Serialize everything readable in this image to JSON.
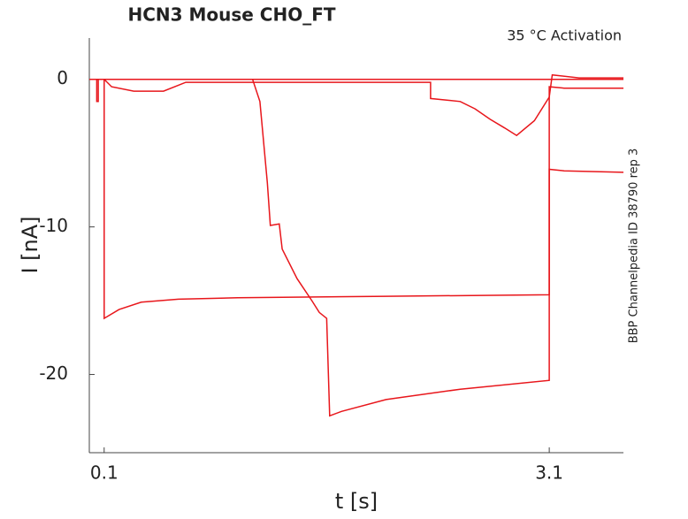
{
  "chart_data": {
    "type": "line",
    "title": "HCN3  Mouse  CHO_FT",
    "annotation": "35 °C  Activation",
    "side_note": "BBP Channelpedia ID 38790 rep 3",
    "xlabel": "t [s]",
    "ylabel": "I [nA]",
    "xlim": [
      0,
      3.6
    ],
    "ylim": [
      -25.3,
      2.8
    ],
    "xticks": [
      0.1,
      3.1
    ],
    "yticks": [
      0,
      -10,
      -20
    ],
    "grid": false,
    "series": [
      {
        "color": "#e8161b",
        "x": [
          0,
          0.1,
          0.1,
          0.2,
          0.35,
          0.6,
          1.0,
          2.0,
          3.1,
          3.1,
          3.2,
          3.6
        ],
        "values": [
          0,
          0,
          -16.2,
          -15.6,
          -15.1,
          -14.9,
          -14.8,
          -14.7,
          -14.6,
          -0.5,
          -0.6,
          -0.6
        ]
      },
      {
        "color": "#e8161b",
        "x": [
          0,
          1.1,
          1.15,
          1.2,
          1.22,
          1.28,
          1.3,
          1.4,
          1.5,
          1.55,
          1.6,
          1.62,
          1.7,
          2.0,
          2.5,
          3.1,
          3.1,
          3.2,
          3.6
        ],
        "values": [
          0,
          0,
          -1.5,
          -7,
          -9.9,
          -9.8,
          -11.5,
          -13.5,
          -15,
          -15.8,
          -16.2,
          -22.8,
          -22.5,
          -21.7,
          -21,
          -20.4,
          -6.1,
          -6.2,
          -6.3
        ]
      },
      {
        "color": "#e8161b",
        "x": [
          0,
          0.1,
          0.15,
          0.3,
          0.5,
          0.6,
          0.65,
          2.3,
          2.3,
          2.5,
          2.6,
          2.7,
          2.8,
          2.88,
          3.0,
          3.1,
          3.12,
          3.3,
          3.6
        ],
        "values": [
          0,
          0,
          -0.5,
          -0.8,
          -0.8,
          -0.4,
          -0.2,
          -0.2,
          -1.3,
          -1.5,
          -2,
          -2.7,
          -3.3,
          -3.8,
          -2.8,
          -1.2,
          0.3,
          0.1,
          0.1
        ]
      },
      {
        "color": "#e8161b",
        "x": [
          0,
          0.05,
          0.05,
          0.06,
          0.06,
          3.6
        ],
        "values": [
          0,
          0,
          -1.5,
          -1.5,
          0,
          0
        ]
      }
    ]
  }
}
